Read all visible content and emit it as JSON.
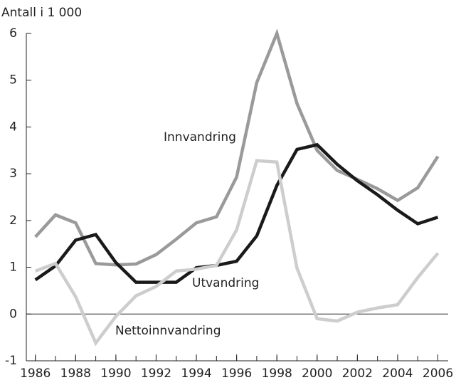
{
  "chart_data": {
    "type": "line",
    "y_axis_label": "Antall i 1 000",
    "x": [
      1986,
      1987,
      1988,
      1989,
      1990,
      1991,
      1992,
      1993,
      1994,
      1995,
      1996,
      1997,
      1998,
      1999,
      2000,
      2001,
      2002,
      2003,
      2004,
      2005,
      2006
    ],
    "series": [
      {
        "name": "Innvandring",
        "color": "#9a9a9a",
        "values": [
          1.65,
          2.12,
          1.95,
          1.08,
          1.05,
          1.07,
          1.27,
          1.6,
          1.95,
          2.08,
          2.93,
          4.95,
          6.0,
          4.5,
          3.5,
          3.07,
          2.88,
          2.68,
          2.43,
          2.7,
          3.37
        ]
      },
      {
        "name": "Utvandring",
        "color": "#1a1a1a",
        "values": [
          0.73,
          1.03,
          1.58,
          1.7,
          1.1,
          0.68,
          0.68,
          0.68,
          0.99,
          1.04,
          1.13,
          1.67,
          2.75,
          3.52,
          3.62,
          3.2,
          2.85,
          2.55,
          2.22,
          1.93,
          2.07
        ]
      },
      {
        "name": "Nettoinnvandring",
        "color": "#cdcdcd",
        "values": [
          0.92,
          1.08,
          0.37,
          -0.62,
          -0.05,
          0.39,
          0.59,
          0.92,
          0.96,
          1.04,
          1.8,
          3.28,
          3.25,
          0.98,
          -0.1,
          -0.15,
          0.04,
          0.13,
          0.2,
          0.78,
          1.3
        ]
      }
    ],
    "xlim": [
      1985.55,
      2006.3
    ],
    "xticks": [
      1986,
      1988,
      1990,
      1992,
      1994,
      1996,
      1998,
      2000,
      2002,
      2004,
      2006
    ],
    "ylim": [
      -1,
      6
    ],
    "yticks": [
      -1,
      0,
      1,
      2,
      3,
      4,
      5,
      6
    ]
  }
}
